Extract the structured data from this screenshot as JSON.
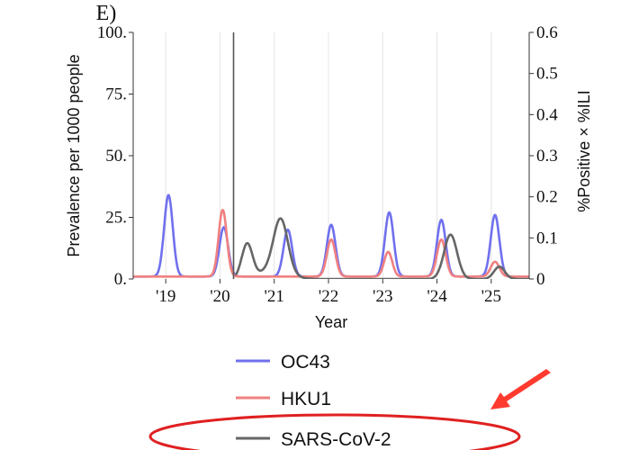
{
  "panel_label": "E)",
  "legend": {
    "items": [
      {
        "label": "OC43",
        "color": "#7070ee"
      },
      {
        "label": "HKU1",
        "color": "#f08080"
      },
      {
        "label": "SARS-CoV-2",
        "color": "#666666"
      }
    ]
  },
  "annotation": {
    "arrow_color": "#ff3b30",
    "ellipse_color": "#e02020"
  },
  "chart_data": {
    "type": "line",
    "title": "",
    "xlabel": "Year",
    "ylabel": "Prevalence per 1000 people",
    "ylabel_right": "%Positive × %ILI",
    "xlim": [
      2018.4,
      2025.7
    ],
    "ylim": [
      0,
      100
    ],
    "ylim_right": [
      0,
      0.6
    ],
    "x_ticks": [
      {
        "value": 2019,
        "label": "'19"
      },
      {
        "value": 2020,
        "label": "'20"
      },
      {
        "value": 2021,
        "label": "'21"
      },
      {
        "value": 2022,
        "label": "'22"
      },
      {
        "value": 2023,
        "label": "'23"
      },
      {
        "value": 2024,
        "label": "'24"
      },
      {
        "value": 2025,
        "label": "'25"
      }
    ],
    "y_ticks": [
      {
        "value": 0,
        "label": "0."
      },
      {
        "value": 25,
        "label": "25."
      },
      {
        "value": 50,
        "label": "50."
      },
      {
        "value": 75,
        "label": "75."
      },
      {
        "value": 100,
        "label": "100."
      }
    ],
    "y_ticks_right": [
      {
        "value": 0,
        "label": "0"
      },
      {
        "value": 0.1,
        "label": "0.1"
      },
      {
        "value": 0.2,
        "label": "0.2"
      },
      {
        "value": 0.3,
        "label": "0.3"
      },
      {
        "value": 0.4,
        "label": "0.4"
      },
      {
        "value": 0.5,
        "label": "0.5"
      },
      {
        "value": 0.6,
        "label": "0.6"
      }
    ],
    "grid": "vertical",
    "vline": {
      "x": 2020.25,
      "color": "#555555"
    },
    "series": [
      {
        "name": "OC43",
        "color": "#7070ee",
        "baseline": 1,
        "peaks": [
          {
            "x": 2019.05,
            "y": 34,
            "width": 0.08
          },
          {
            "x": 2020.07,
            "y": 21,
            "width": 0.08
          },
          {
            "x": 2021.25,
            "y": 20,
            "width": 0.08
          },
          {
            "x": 2022.05,
            "y": 22,
            "width": 0.08
          },
          {
            "x": 2023.12,
            "y": 27,
            "width": 0.08
          },
          {
            "x": 2024.08,
            "y": 24,
            "width": 0.08
          },
          {
            "x": 2025.07,
            "y": 26,
            "width": 0.08
          }
        ]
      },
      {
        "name": "HKU1",
        "color": "#f08080",
        "baseline": 1,
        "peaks": [
          {
            "x": 2020.05,
            "y": 28,
            "width": 0.075
          },
          {
            "x": 2021.1,
            "y": 1,
            "width": 0.08
          },
          {
            "x": 2022.05,
            "y": 16,
            "width": 0.08
          },
          {
            "x": 2023.1,
            "y": 11,
            "width": 0.075
          },
          {
            "x": 2024.08,
            "y": 16,
            "width": 0.08
          },
          {
            "x": 2025.07,
            "y": 7,
            "width": 0.08
          }
        ]
      },
      {
        "name": "SARS-CoV-2",
        "color": "#666666",
        "baseline": 0,
        "start_x": 2020.3,
        "peaks": [
          {
            "x": 2020.5,
            "y": 14,
            "width": 0.1
          },
          {
            "x": 2021.12,
            "y": 21,
            "width": 0.13
          },
          {
            "x": 2021.0,
            "y": 4,
            "width": 0.25
          },
          {
            "x": 2024.25,
            "y": 18,
            "width": 0.12
          },
          {
            "x": 2025.15,
            "y": 5,
            "width": 0.1
          }
        ]
      }
    ]
  }
}
